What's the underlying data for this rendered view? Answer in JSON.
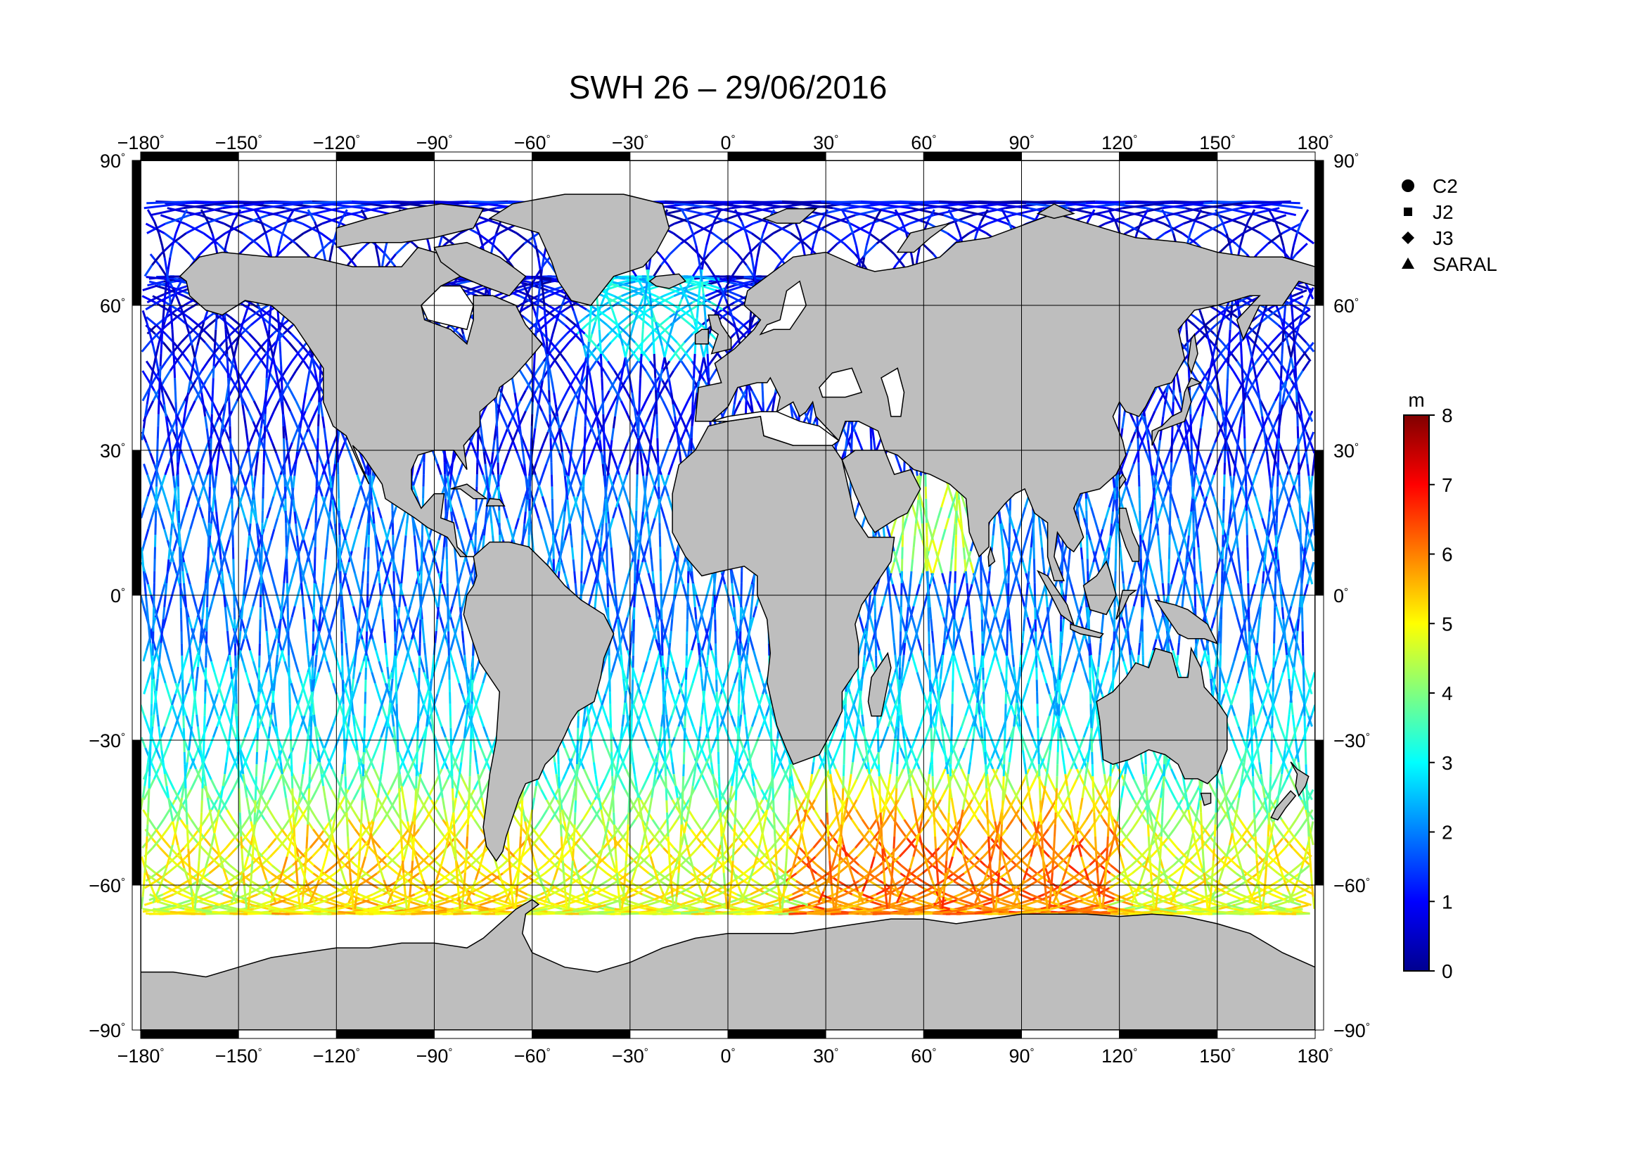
{
  "map": {
    "title": "SWH 26 – 29/06/2016",
    "projection": "equirectangular",
    "lon_range": [
      -180,
      180
    ],
    "lat_range": [
      -90,
      90
    ],
    "lon_ticks": [
      "−180",
      "−150",
      "−120",
      "−90",
      "−60",
      "−30",
      "0",
      "30",
      "60",
      "90",
      "120",
      "150",
      "180"
    ],
    "lat_ticks": [
      "90",
      "60",
      "30",
      "0",
      "−30",
      "−60",
      "−90"
    ],
    "land_color": "#bebebe",
    "ocean_color": "#ffffff",
    "grid": true
  },
  "legend": {
    "items": [
      {
        "symbol": "circle",
        "label": "C2"
      },
      {
        "symbol": "square",
        "label": "J2"
      },
      {
        "symbol": "diamond",
        "label": "J3"
      },
      {
        "symbol": "triangle",
        "label": "SARAL"
      }
    ]
  },
  "colorbar": {
    "unit": "m",
    "min": 0,
    "max": 8,
    "ticks": [
      "0",
      "1",
      "2",
      "3",
      "4",
      "5",
      "6",
      "7",
      "8"
    ],
    "colormap": "jet"
  },
  "chart_data": {
    "type": "map",
    "variable": "SWH",
    "unit": "m",
    "description_regions": [
      {
        "region": "Arctic / North Atlantic",
        "swh_m": 1.0
      },
      {
        "region": "North Pacific",
        "swh_m": 1.5
      },
      {
        "region": "Tropics",
        "swh_m": 2.2
      },
      {
        "region": "Southern Ocean Pacific sector",
        "swh_m": 4.5
      },
      {
        "region": "Southern Ocean Indian sector",
        "swh_m": 6.5
      }
    ]
  }
}
